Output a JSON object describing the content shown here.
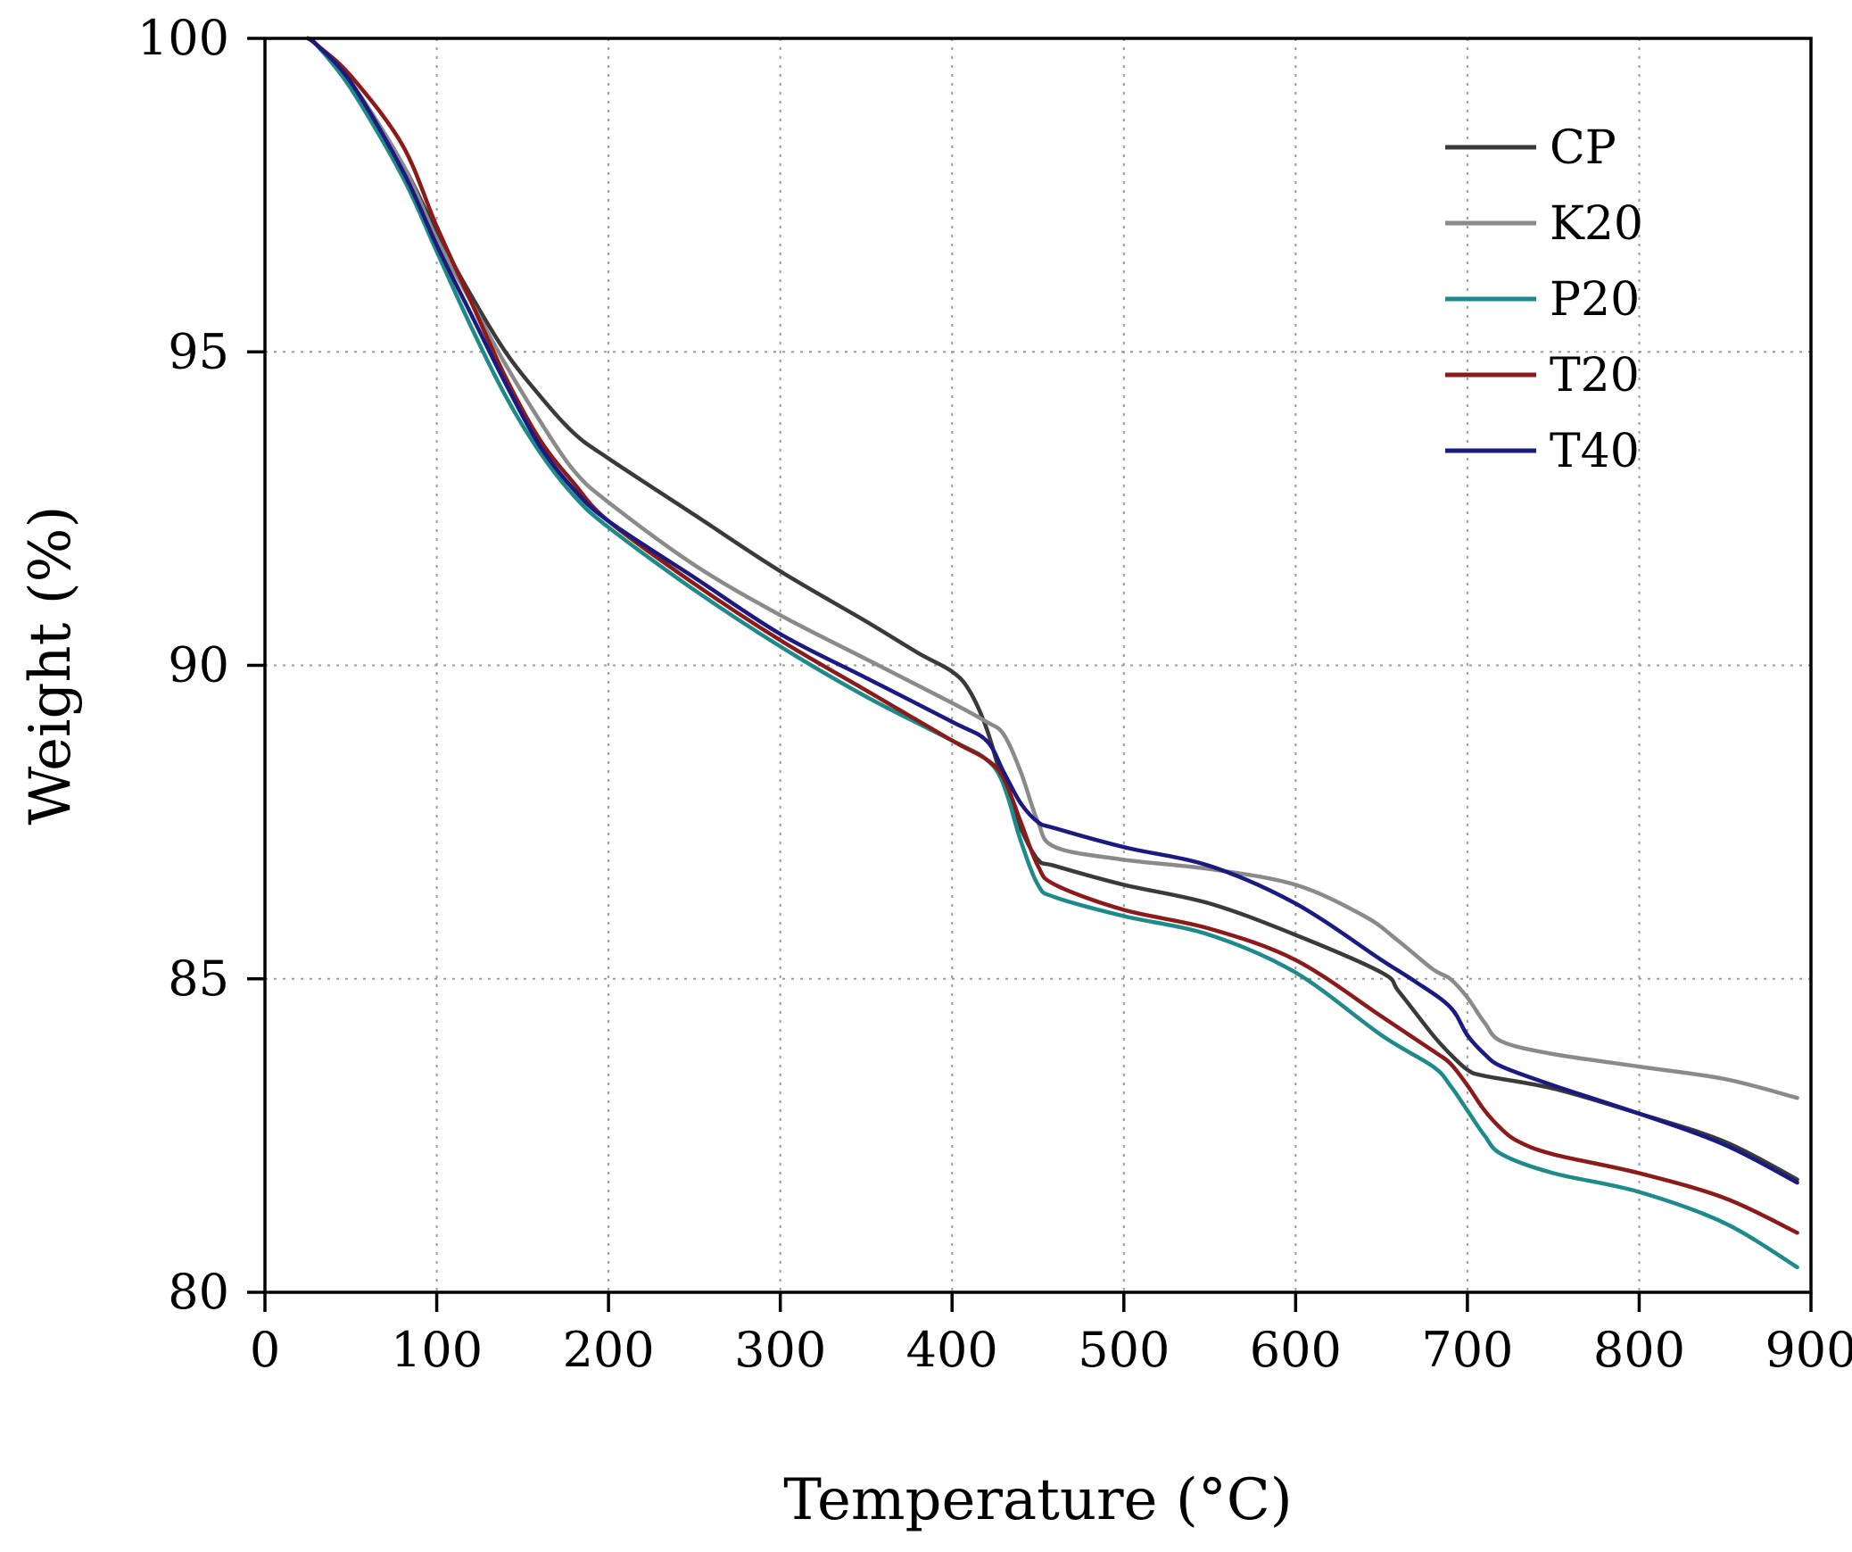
{
  "chart_data": {
    "type": "line",
    "title": "",
    "xlabel": "Temperature (°C)",
    "ylabel": "Weight (%)",
    "xlim": [
      0,
      900
    ],
    "ylim": [
      80,
      100
    ],
    "xticks": [
      "0",
      "100",
      "200",
      "300",
      "400",
      "500",
      "600",
      "700",
      "800",
      "900"
    ],
    "yticks": [
      "80",
      "85",
      "90",
      "95",
      "100"
    ],
    "grid": true,
    "legend_position": "top-right",
    "series": [
      {
        "name": "CP",
        "color": "#3a3a3a",
        "x": [
          25,
          30,
          50,
          80,
          100,
          120,
          140,
          160,
          180,
          200,
          250,
          300,
          350,
          380,
          400,
          410,
          420,
          430,
          440,
          450,
          460,
          500,
          550,
          600,
          650,
          660,
          680,
          690,
          700,
          710,
          750,
          800,
          850,
          892
        ],
        "y": [
          100,
          99.9,
          99.3,
          98.0,
          96.9,
          95.9,
          95.0,
          94.3,
          93.7,
          93.3,
          92.4,
          91.5,
          90.7,
          90.2,
          89.9,
          89.6,
          89.0,
          88.1,
          87.4,
          86.9,
          86.8,
          86.5,
          86.2,
          85.7,
          85.1,
          84.8,
          84.1,
          83.8,
          83.55,
          83.45,
          83.25,
          82.85,
          82.4,
          81.8
        ]
      },
      {
        "name": "K20",
        "color": "#8a8a8a",
        "x": [
          25,
          30,
          50,
          80,
          100,
          120,
          140,
          160,
          180,
          200,
          250,
          300,
          350,
          400,
          420,
          430,
          440,
          450,
          460,
          500,
          550,
          600,
          640,
          660,
          680,
          690,
          700,
          710,
          720,
          750,
          800,
          850,
          892
        ],
        "y": [
          100,
          99.9,
          99.3,
          98.0,
          96.8,
          95.8,
          94.8,
          93.9,
          93.1,
          92.6,
          91.6,
          90.8,
          90.1,
          89.4,
          89.1,
          88.9,
          88.3,
          87.5,
          87.1,
          86.9,
          86.75,
          86.5,
          86.0,
          85.6,
          85.15,
          85.0,
          84.7,
          84.3,
          84.0,
          83.8,
          83.6,
          83.4,
          83.1
        ]
      },
      {
        "name": "P20",
        "color": "#1f8a8a",
        "x": [
          25,
          30,
          50,
          80,
          100,
          120,
          140,
          160,
          180,
          200,
          250,
          300,
          350,
          400,
          420,
          430,
          440,
          450,
          460,
          500,
          550,
          600,
          650,
          680,
          690,
          700,
          710,
          720,
          750,
          800,
          850,
          892
        ],
        "y": [
          100,
          99.9,
          99.2,
          97.8,
          96.6,
          95.4,
          94.3,
          93.4,
          92.7,
          92.2,
          91.2,
          90.3,
          89.5,
          88.8,
          88.5,
          88.1,
          87.2,
          86.5,
          86.3,
          86.0,
          85.7,
          85.1,
          84.1,
          83.6,
          83.3,
          82.9,
          82.5,
          82.2,
          81.9,
          81.6,
          81.1,
          80.4
        ]
      },
      {
        "name": "T20",
        "color": "#8b1a1a",
        "x": [
          25,
          30,
          50,
          80,
          100,
          120,
          140,
          160,
          180,
          200,
          250,
          300,
          350,
          400,
          420,
          430,
          440,
          450,
          460,
          500,
          550,
          600,
          650,
          680,
          690,
          700,
          710,
          720,
          730,
          750,
          800,
          850,
          892
        ],
        "y": [
          100,
          99.9,
          99.4,
          98.3,
          97.0,
          95.8,
          94.6,
          93.6,
          92.9,
          92.3,
          91.3,
          90.4,
          89.6,
          88.8,
          88.5,
          88.2,
          87.5,
          86.8,
          86.5,
          86.1,
          85.8,
          85.3,
          84.4,
          83.85,
          83.65,
          83.3,
          82.9,
          82.6,
          82.4,
          82.2,
          81.9,
          81.5,
          80.95
        ]
      },
      {
        "name": "T40",
        "color": "#1a1a80",
        "x": [
          25,
          30,
          50,
          80,
          100,
          120,
          140,
          160,
          180,
          200,
          250,
          300,
          350,
          400,
          420,
          430,
          440,
          450,
          460,
          500,
          550,
          600,
          650,
          670,
          690,
          700,
          710,
          720,
          750,
          800,
          850,
          892
        ],
        "y": [
          100,
          99.9,
          99.3,
          97.9,
          96.7,
          95.6,
          94.5,
          93.5,
          92.8,
          92.3,
          91.4,
          90.5,
          89.8,
          89.1,
          88.8,
          88.3,
          87.8,
          87.5,
          87.4,
          87.1,
          86.8,
          86.2,
          85.3,
          84.95,
          84.55,
          84.1,
          83.8,
          83.6,
          83.3,
          82.85,
          82.35,
          81.75
        ]
      }
    ]
  }
}
